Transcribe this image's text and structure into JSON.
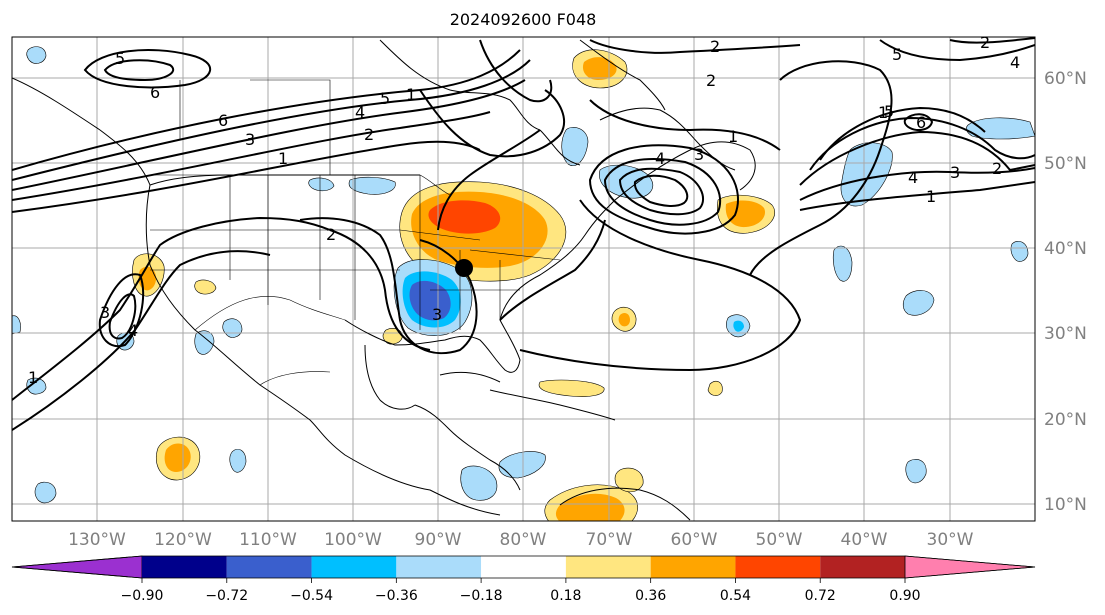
{
  "title": "2024092600 F048",
  "longitude_labels": [
    "130°W",
    "120°W",
    "110°W",
    "100°W",
    "90°W",
    "80°W",
    "70°W",
    "60°W",
    "50°W",
    "40°W",
    "30°W"
  ],
  "latitude_labels": [
    "60°N",
    "50°N",
    "40°N",
    "30°N",
    "20°N",
    "10°N"
  ],
  "colorbar": {
    "labels": [
      "−0.90",
      "−0.72",
      "−0.54",
      "−0.36",
      "−0.18",
      "0.18",
      "0.36",
      "0.54",
      "0.72",
      "0.90"
    ],
    "colors": [
      "#9b30d0",
      "#00008b",
      "#3a5fcd",
      "#00bfff",
      "#aadcfa",
      "#ffffff",
      "#ffe680",
      "#ffa500",
      "#ff4500",
      "#b22222",
      "#ff7fae"
    ]
  },
  "contour_labels": [
    "5",
    "6",
    "6",
    "3",
    "1",
    "4",
    "5",
    "1",
    "2",
    "2",
    "2",
    "1",
    "4",
    "2",
    "2",
    "5",
    "6",
    "4",
    "3",
    "2",
    "1",
    "1",
    "3",
    "4",
    "3",
    "1",
    "3",
    "4",
    "5"
  ],
  "marker": "station-dot"
}
